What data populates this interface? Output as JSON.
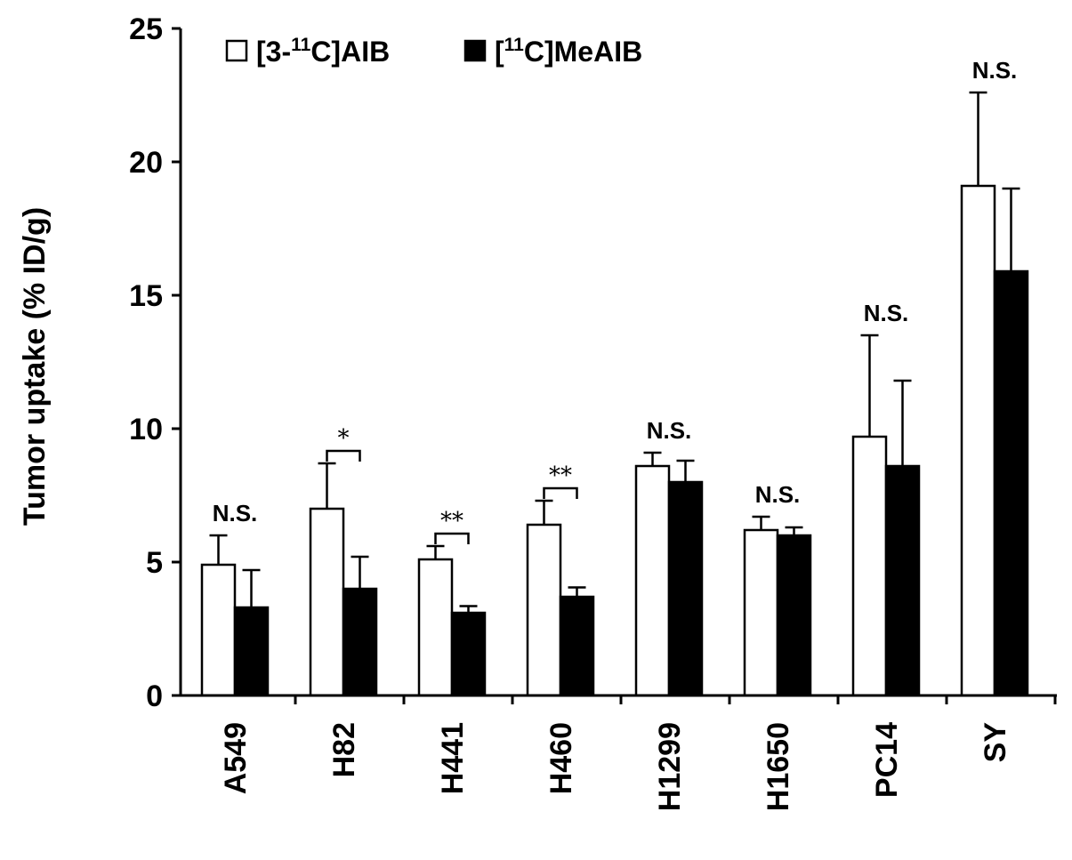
{
  "chart_data": {
    "type": "bar",
    "title": "",
    "xlabel": "",
    "ylabel": "Tumor uptake (% ID/g)",
    "ylim": [
      0,
      25
    ],
    "yticks": [
      "0",
      "5",
      "10",
      "15",
      "20",
      "25"
    ],
    "categories": [
      "A549",
      "H82",
      "H441",
      "H460",
      "H1299",
      "H1650",
      "PC14",
      "SY"
    ],
    "legend": {
      "position": "top-left",
      "entries": [
        {
          "series": "aib",
          "prefix": "[3-",
          "superscript": "11",
          "suffix": "C]AIB"
        },
        {
          "series": "meaib",
          "prefix": "[",
          "superscript": "11",
          "suffix": "C]MeAIB"
        }
      ]
    },
    "series": [
      {
        "key": "aib",
        "name": "[3-11C]AIB",
        "fill": "#ffffff",
        "values": [
          4.9,
          7.0,
          5.1,
          6.4,
          8.6,
          6.2,
          9.7,
          19.1
        ],
        "errors": [
          1.1,
          1.7,
          0.5,
          0.9,
          0.5,
          0.5,
          3.8,
          3.5
        ]
      },
      {
        "key": "meaib",
        "name": "[11C]MeAIB",
        "fill": "#000000",
        "values": [
          3.3,
          4.0,
          3.1,
          3.7,
          8.0,
          6.0,
          8.6,
          15.9
        ],
        "errors": [
          1.4,
          1.2,
          0.25,
          0.35,
          0.8,
          0.3,
          3.2,
          3.1
        ]
      }
    ],
    "annotations": [
      {
        "category": "A549",
        "type": "ns",
        "text": "N.S."
      },
      {
        "category": "H82",
        "type": "bracket",
        "text": "*"
      },
      {
        "category": "H441",
        "type": "bracket",
        "text": "**"
      },
      {
        "category": "H460",
        "type": "bracket",
        "text": "**"
      },
      {
        "category": "H1299",
        "type": "ns",
        "text": "N.S."
      },
      {
        "category": "H1650",
        "type": "ns",
        "text": "N.S."
      },
      {
        "category": "PC14",
        "type": "ns",
        "text": "N.S."
      },
      {
        "category": "SY",
        "type": "ns",
        "text": "N.S."
      }
    ],
    "grid": false
  }
}
